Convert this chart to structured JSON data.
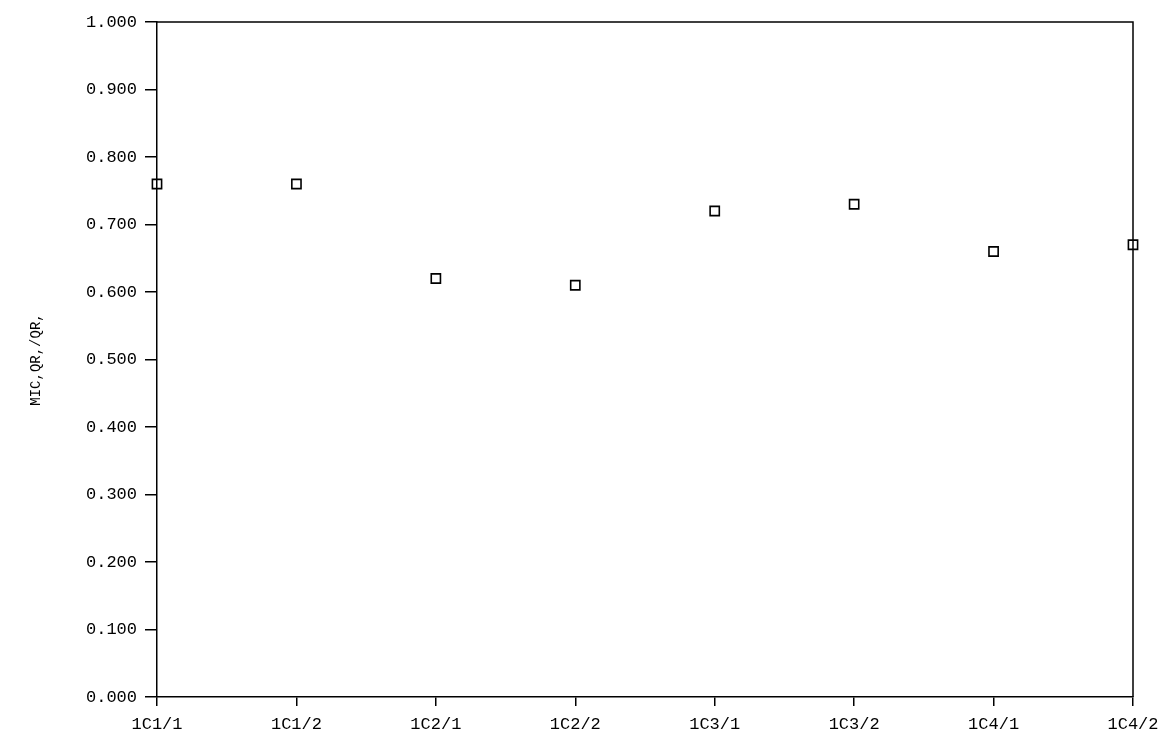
{
  "chart_data": {
    "type": "scatter",
    "ylabel": "MIC,QR,/QR,",
    "categories": [
      "1C1/1",
      "1C1/2",
      "1C2/1",
      "1C2/2",
      "1C3/1",
      "1C3/2",
      "1C4/1",
      "1C4/2"
    ],
    "values": [
      0.76,
      0.76,
      0.62,
      0.61,
      0.72,
      0.73,
      0.66,
      0.67
    ],
    "color": "#000000",
    "ylim": [
      0,
      1
    ],
    "yticks": [
      {
        "value": 0,
        "label": "0.000"
      },
      {
        "value": 0.1,
        "label": "0.100"
      },
      {
        "value": 0.2,
        "label": "0.200"
      },
      {
        "value": 0.3,
        "label": "0.300"
      },
      {
        "value": 0.4,
        "label": "0.400"
      },
      {
        "value": 0.5,
        "label": "0.500"
      },
      {
        "value": 0.6,
        "label": "0.600"
      },
      {
        "value": 0.7,
        "label": "0.700"
      },
      {
        "value": 0.8,
        "label": "0.800"
      },
      {
        "value": 0.9,
        "label": "0.900"
      },
      {
        "value": 1,
        "label": "1.000"
      }
    ],
    "grid": false,
    "legend": false,
    "marker": "square"
  }
}
